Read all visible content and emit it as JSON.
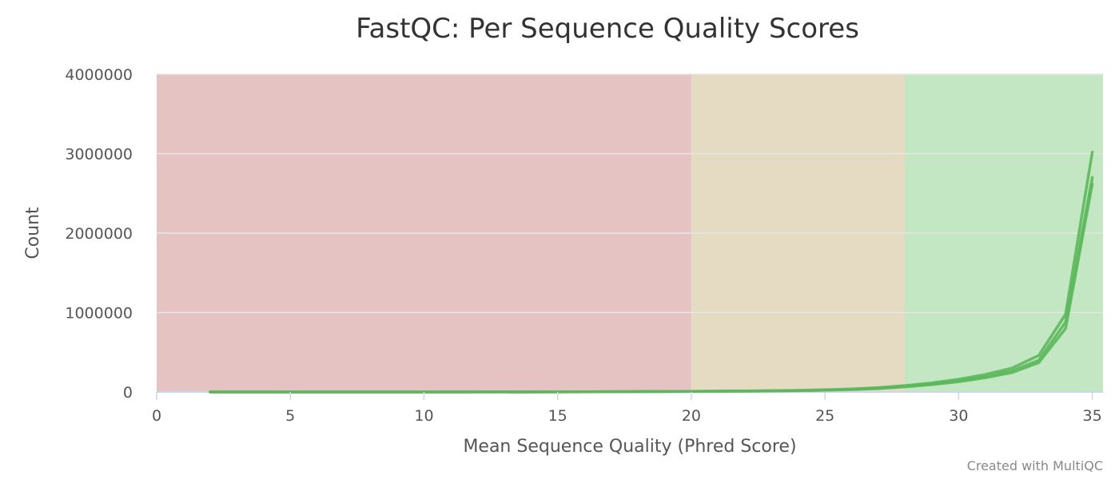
{
  "chart_data": {
    "type": "line",
    "title": "FastQC: Per Sequence Quality Scores",
    "xlabel": "Mean Sequence Quality (Phred Score)",
    "ylabel": "Count",
    "xlim": [
      0,
      35.4
    ],
    "ylim": [
      0,
      4000000
    ],
    "x_ticks": [
      "0",
      "5",
      "10",
      "15",
      "20",
      "25",
      "30",
      "35"
    ],
    "y_ticks": [
      "0",
      "1000000",
      "2000000",
      "3000000",
      "4000000"
    ],
    "grid": true,
    "legend": "none",
    "bands": [
      {
        "from": 0,
        "to": 20,
        "color": "#e6c3c3"
      },
      {
        "from": 20,
        "to": 28,
        "color": "#e5dbc3"
      },
      {
        "from": 28,
        "to": 35.4,
        "color": "#c3e6c3"
      }
    ],
    "series_color": "#5cb85c",
    "x": [
      2,
      5,
      10,
      15,
      20,
      22,
      24,
      25,
      26,
      27,
      28,
      29,
      30,
      31,
      32,
      33,
      34,
      35
    ],
    "series": [
      {
        "values": [
          100,
          200,
          400,
          1500,
          8000,
          12000,
          20000,
          28000,
          38000,
          55000,
          80000,
          115000,
          160000,
          220000,
          300000,
          460000,
          980000,
          3020000
        ]
      },
      {
        "values": [
          100,
          200,
          400,
          1400,
          7000,
          11000,
          18000,
          25000,
          34000,
          48000,
          72000,
          100000,
          140000,
          195000,
          265000,
          400000,
          880000,
          2700000
        ]
      },
      {
        "values": [
          100,
          150,
          350,
          1200,
          6000,
          10000,
          16000,
          22000,
          30000,
          43000,
          65000,
          92000,
          130000,
          180000,
          245000,
          370000,
          800000,
          2620000
        ]
      }
    ]
  },
  "footer": {
    "credit": "Created with MultiQC"
  }
}
